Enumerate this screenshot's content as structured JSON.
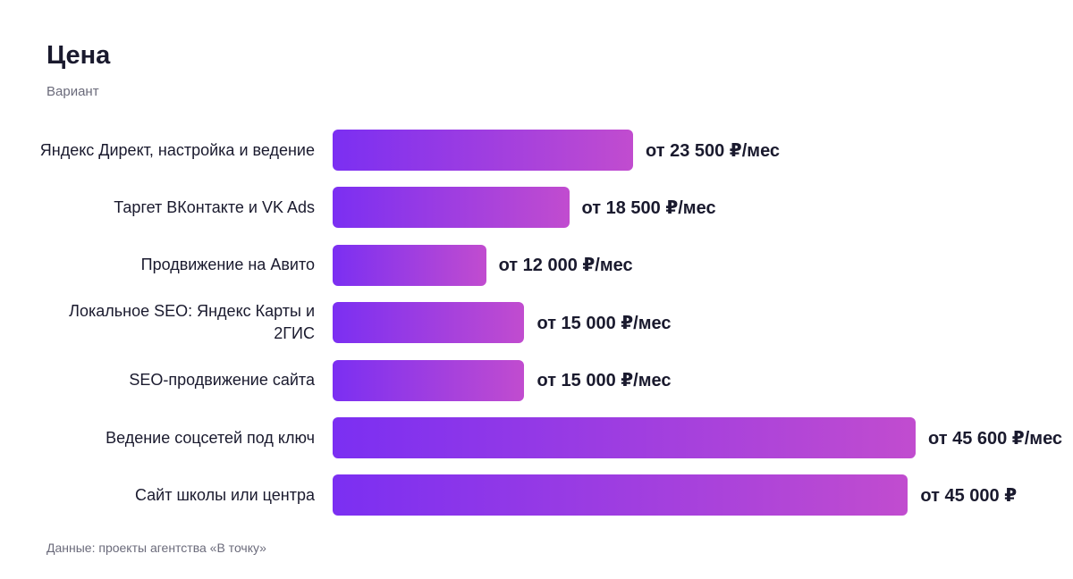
{
  "chart_data": {
    "type": "bar",
    "orientation": "horizontal",
    "title": "Цена",
    "subtitle": "Вариант",
    "categories": [
      "Яндекс Директ, настройка и ведение",
      "Таргет ВКонтакте и VK Ads",
      "Продвижение на Авито",
      "Локальное SEO: Яндекс Карты и 2ГИС",
      "SEO-продвижение сайта",
      "Ведение соцсетей под ключ",
      "Сайт школы или центра"
    ],
    "values": [
      23500,
      18500,
      12000,
      15000,
      15000,
      45600,
      45000
    ],
    "value_labels": [
      "от 23 500 ₽/мес",
      "от 18 500 ₽/мес",
      "от 12 000 ₽/мес",
      "от 15 000 ₽/мес",
      "от 15 000 ₽/мес",
      "от 45 600 ₽/мес",
      "от 45 000 ₽"
    ],
    "colors": [
      "#7b2ff2",
      "#c14ccf"
    ],
    "source": "Данные: проекты агентства «В точку»"
  }
}
